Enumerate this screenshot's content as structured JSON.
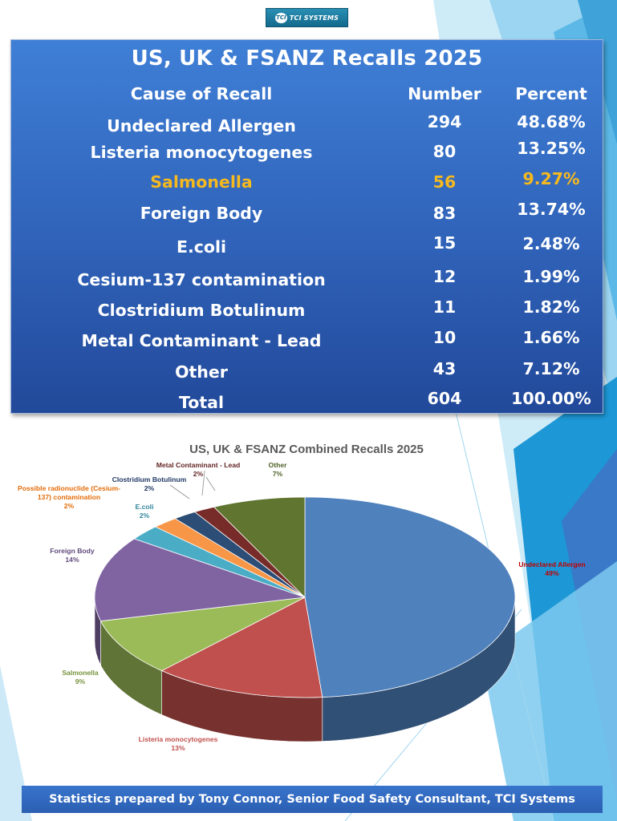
{
  "logo": {
    "mark": "TCI",
    "text": "TCI SYSTEMS"
  },
  "table": {
    "title": "US, UK & FSANZ Recalls 2025",
    "headers": {
      "cause": "Cause of Recall",
      "number": "Number",
      "percent": "Percent"
    },
    "rows": [
      {
        "cause": "Undeclared Allergen",
        "number": "294",
        "percent": "48.68%"
      },
      {
        "cause": "Listeria monocytogenes",
        "number": "80",
        "percent": "13.25%"
      },
      {
        "cause": "Salmonella",
        "number": "56",
        "percent": "9.27%",
        "highlight": true
      },
      {
        "cause": "Foreign Body",
        "number": "83",
        "percent": "13.74%"
      },
      {
        "cause": "E.coli",
        "number": "15",
        "percent": "2.48%"
      },
      {
        "cause": "Cesium-137 contamination",
        "number": "12",
        "percent": "1.99%"
      },
      {
        "cause": "Clostridium Botulinum",
        "number": "11",
        "percent": "1.82%"
      },
      {
        "cause": "Metal Contaminant - Lead",
        "number": "10",
        "percent": "1.66%"
      },
      {
        "cause": "Other",
        "number": "43",
        "percent": "7.12%"
      },
      {
        "cause": "Total",
        "number": "604",
        "percent": "100.00%"
      }
    ]
  },
  "chart_data": {
    "type": "pie",
    "title": "US, UK & FSANZ Combined Recalls 2025",
    "slices": [
      {
        "label": "Undeclared Allergen",
        "value": 294,
        "pct_label": "49%",
        "color": "#4f81bd",
        "label_color": "#c00000"
      },
      {
        "label": "Listeria monocytogenes",
        "value": 80,
        "pct_label": "13%",
        "color": "#c0504d",
        "label_color": "#c0504d"
      },
      {
        "label": "Salmonella",
        "value": 56,
        "pct_label": "9%",
        "color": "#9bbb59",
        "label_color": "#77933c"
      },
      {
        "label": "Foreign Body",
        "value": 83,
        "pct_label": "14%",
        "color": "#8064a2",
        "label_color": "#604a7b"
      },
      {
        "label": "E.coli",
        "value": 15,
        "pct_label": "2%",
        "color": "#4bacc6",
        "label_color": "#31859c"
      },
      {
        "label_lines": [
          "Possible radionuclide (Cesium-",
          "137) contamination"
        ],
        "value": 12,
        "pct_label": "2%",
        "color": "#f79646",
        "label_color": "#e36c09"
      },
      {
        "label": "Clostridium  Botulinum",
        "value": 11,
        "pct_label": "2%",
        "color": "#2c4d75",
        "label_color": "#1f3864"
      },
      {
        "label": "Metal Contaminant  - Lead",
        "value": 10,
        "pct_label": "2%",
        "color": "#772c2a",
        "label_color": "#632523"
      },
      {
        "label": "Other",
        "value": 43,
        "pct_label": "7%",
        "color": "#5f7530",
        "label_color": "#4f6228"
      }
    ]
  },
  "footer": {
    "text": "Statistics prepared by Tony Connor, Senior Food Safety Consultant, TCI Systems"
  },
  "theme": {
    "panel": "#3468c2",
    "highlight": "#f6b91e",
    "background_blue": "#2f9fd8"
  }
}
